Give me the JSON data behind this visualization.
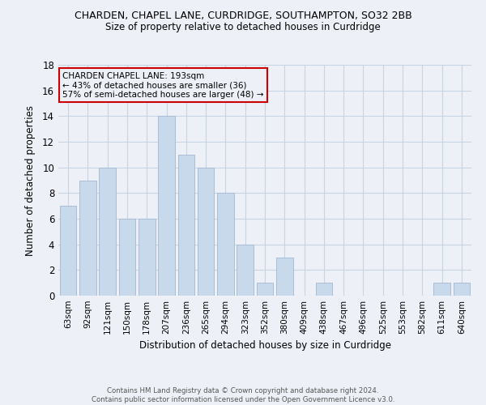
{
  "title": "CHARDEN, CHAPEL LANE, CURDRIDGE, SOUTHAMPTON, SO32 2BB",
  "subtitle": "Size of property relative to detached houses in Curdridge",
  "xlabel": "Distribution of detached houses by size in Curdridge",
  "ylabel": "Number of detached properties",
  "footer1": "Contains HM Land Registry data © Crown copyright and database right 2024.",
  "footer2": "Contains public sector information licensed under the Open Government Licence v3.0.",
  "categories": [
    "63sqm",
    "92sqm",
    "121sqm",
    "150sqm",
    "178sqm",
    "207sqm",
    "236sqm",
    "265sqm",
    "294sqm",
    "323sqm",
    "352sqm",
    "380sqm",
    "409sqm",
    "438sqm",
    "467sqm",
    "496sqm",
    "525sqm",
    "553sqm",
    "582sqm",
    "611sqm",
    "640sqm"
  ],
  "values": [
    7,
    9,
    10,
    6,
    6,
    14,
    11,
    10,
    8,
    4,
    1,
    3,
    0,
    1,
    0,
    0,
    0,
    0,
    0,
    1,
    1
  ],
  "bar_color": "#c8d9ec",
  "bar_edgecolor": "#aabdd6",
  "annotation_title": "CHARDEN CHAPEL LANE: 193sqm",
  "annotation_line1": "← 43% of detached houses are smaller (36)",
  "annotation_line2": "57% of semi-detached houses are larger (48) →",
  "annotation_box_edgecolor": "#cc0000",
  "ylim": [
    0,
    18
  ],
  "yticks": [
    0,
    2,
    4,
    6,
    8,
    10,
    12,
    14,
    16,
    18
  ],
  "grid_color": "#c8d4e4",
  "bg_color": "#edf1f7"
}
